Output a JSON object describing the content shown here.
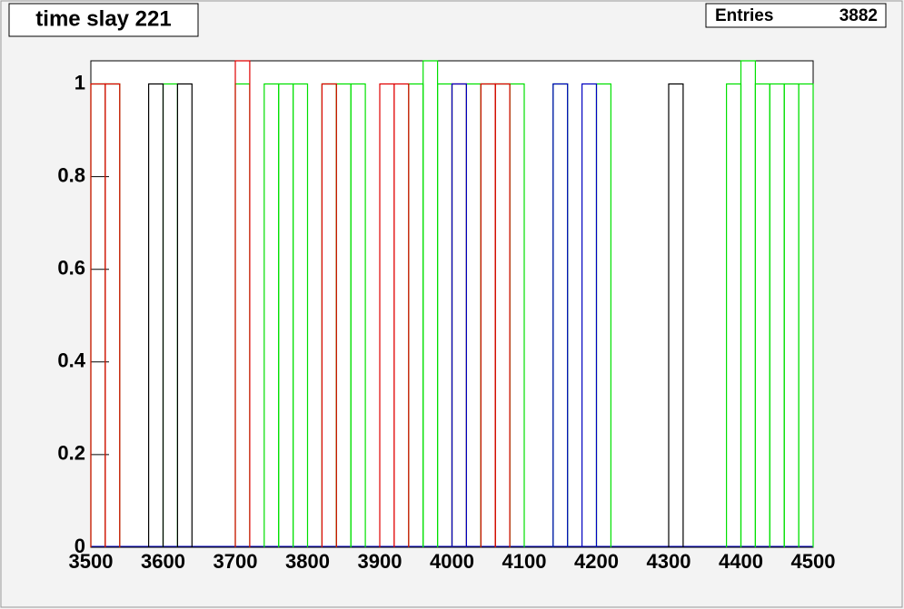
{
  "chart_data": {
    "type": "histogram",
    "title": "time slay 221",
    "stats": {
      "label": "Entries",
      "value": 3882
    },
    "bins": [
      3500,
      3520,
      3540,
      3560,
      3580,
      3600,
      3620,
      3640,
      3660,
      3680,
      3700,
      3720,
      3740,
      3760,
      3780,
      3800,
      3820,
      3840,
      3860,
      3880,
      3900,
      3920,
      3940,
      3960,
      3980,
      4000,
      4020,
      4040,
      4060,
      4080,
      4100,
      4120,
      4140,
      4160,
      4180,
      4200,
      4220,
      4240,
      4260,
      4280,
      4300,
      4320,
      4340,
      4360,
      4380,
      4400,
      4420,
      4440,
      4460,
      4480,
      4500
    ],
    "series": [
      {
        "color": "#00e000",
        "values": [
          1,
          1,
          0,
          0,
          0,
          1,
          0,
          0,
          0,
          0,
          1,
          0,
          1,
          1,
          1,
          0,
          1,
          1,
          1,
          0,
          0,
          0,
          1,
          1.05,
          1,
          0,
          1,
          1,
          1,
          1,
          0,
          0,
          1,
          0,
          0,
          1,
          0,
          0,
          0,
          0,
          0,
          0,
          0,
          0,
          1,
          1.05,
          1,
          1,
          1,
          1
        ]
      },
      {
        "color": "#e00000",
        "values": [
          1,
          1,
          0,
          0,
          0,
          0,
          0,
          0,
          0,
          0,
          1.05,
          0,
          0,
          0,
          0,
          0,
          1,
          0,
          0,
          0,
          1,
          1,
          0,
          0,
          0,
          1,
          0,
          1,
          1,
          0,
          0,
          0,
          0,
          0,
          0,
          0,
          0,
          0,
          0,
          0,
          0,
          0,
          0,
          0,
          0,
          0,
          0,
          0,
          0,
          0
        ]
      },
      {
        "color": "#0000c0",
        "values": [
          0,
          0,
          0,
          0,
          0,
          0,
          0,
          0,
          0,
          0,
          0,
          0,
          0,
          0,
          0,
          0,
          0,
          0,
          0,
          0,
          0,
          0,
          0,
          0,
          0,
          1,
          0,
          0,
          0,
          0,
          0,
          0,
          1,
          0,
          1,
          0,
          0,
          0,
          0,
          0,
          0,
          0,
          0,
          0,
          0,
          0,
          0,
          0,
          0,
          0
        ]
      },
      {
        "color": "#000000",
        "values": [
          0,
          0,
          0,
          0,
          1,
          0,
          1,
          0,
          0,
          0,
          0,
          0,
          0,
          0,
          0,
          0,
          0,
          0,
          0,
          0,
          0,
          0,
          0,
          0,
          0,
          0,
          0,
          0,
          0,
          0,
          0,
          0,
          0,
          0,
          0,
          0,
          0,
          0,
          0,
          0,
          1,
          0,
          0,
          0,
          0,
          0,
          0,
          0,
          0,
          0
        ]
      }
    ],
    "xlim": [
      3500,
      4500
    ],
    "xticks": [
      3500,
      3600,
      3700,
      3800,
      3900,
      4000,
      4100,
      4200,
      4300,
      4400,
      4500
    ],
    "ylim": [
      0,
      1.05
    ],
    "yticks": [
      0,
      0.2,
      0.4,
      0.6,
      0.8,
      1
    ]
  }
}
